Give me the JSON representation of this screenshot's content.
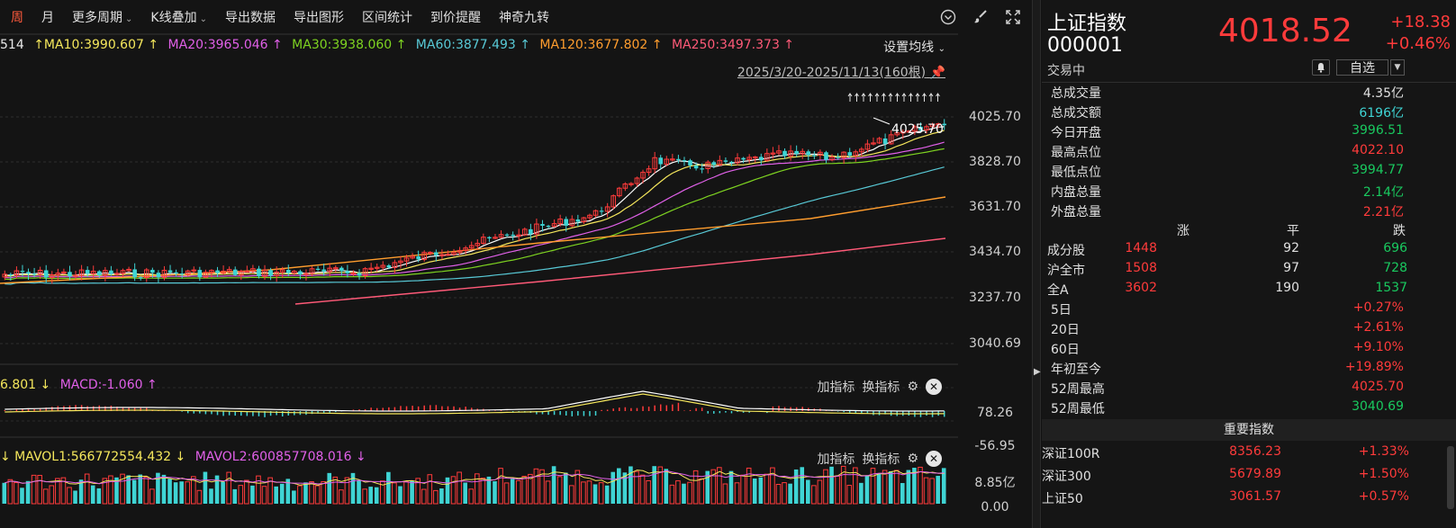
{
  "toolbar": {
    "items": [
      "周",
      "月",
      "更多周期",
      "K线叠加",
      "导出数据",
      "导出图形",
      "区间统计",
      "到价提醒",
      "神奇九转"
    ],
    "active_index": 0,
    "dropdown_flags": [
      false,
      false,
      true,
      true,
      false,
      false,
      false,
      false,
      false
    ]
  },
  "ma_legend": [
    {
      "text": "514",
      "color": "#e8e8e8"
    },
    {
      "text": "↑MA10:3990.607 ↑",
      "color": "#f5e75c"
    },
    {
      "text": "MA20:3965.046 ↑",
      "color": "#e060e8"
    },
    {
      "text": "MA30:3938.060 ↑",
      "color": "#7ed321"
    },
    {
      "text": "MA60:3877.493 ↑",
      "color": "#58c9d6"
    },
    {
      "text": "MA120:3677.802 ↑",
      "color": "#ff9d2e"
    },
    {
      "text": "MA250:3497.373 ↑",
      "color": "#ff5a78"
    }
  ],
  "ma_settings_label": "设置均线",
  "date_range": "2025/3/20-2025/11/13(160根)",
  "max_marker": "4025.70",
  "price_axis": [
    "4025.70",
    "3828.70",
    "3631.70",
    "3434.70",
    "3237.70",
    "3040.69"
  ],
  "macd_legend": [
    {
      "text": "6.801 ↓",
      "color": "#f5e75c"
    },
    {
      "text": "MACD:-1.060 ↑",
      "color": "#e060e8"
    }
  ],
  "macd_axis": [
    "78.26",
    "-56.95"
  ],
  "vol_legend": [
    {
      "text": "↓ MAVOL1:566772554.432 ↓",
      "color": "#f5e75c"
    },
    {
      "text": "MAVOL2:600857708.016 ↓",
      "color": "#e060e8"
    }
  ],
  "vol_axis": [
    "8.85亿",
    "0.00"
  ],
  "sub_tools": {
    "add": "加指标",
    "switch": "换指标"
  },
  "quote": {
    "name": "上证指数",
    "code": "000001",
    "status": "交易中",
    "price": "4018.52",
    "change": "+18.38",
    "change_pct": "+0.46%",
    "watch_label": "自选"
  },
  "stats": [
    {
      "label": "总成交量",
      "value": "4.35亿",
      "color": "#e0e0e0"
    },
    {
      "label": "总成交额",
      "value": "6196亿",
      "color": "#3fd4d4"
    },
    {
      "label": "今日开盘",
      "value": "3996.51",
      "color": "#19c95f"
    },
    {
      "label": "最高点位",
      "value": "4022.10",
      "color": "#ff3b3b"
    },
    {
      "label": "最低点位",
      "value": "3994.77",
      "color": "#19c95f"
    },
    {
      "label": "内盘总量",
      "value": "2.14亿",
      "color": "#19c95f"
    },
    {
      "label": "外盘总量",
      "value": "2.21亿",
      "color": "#ff3b3b"
    }
  ],
  "breadth": {
    "headers": {
      "up": "涨",
      "flat": "平",
      "down": "跌"
    },
    "rows": [
      {
        "label": "成分股",
        "up": "1448",
        "flat": "92",
        "down": "696"
      },
      {
        "label": "沪全市",
        "up": "1508",
        "flat": "97",
        "down": "728"
      },
      {
        "label": "全A",
        "up": "3602",
        "flat": "190",
        "down": "1537"
      }
    ]
  },
  "performance": [
    {
      "label": "5日",
      "value": "+0.27%",
      "color": "#ff3b3b"
    },
    {
      "label": "20日",
      "value": "+2.61%",
      "color": "#ff3b3b"
    },
    {
      "label": "60日",
      "value": "+9.10%",
      "color": "#ff3b3b"
    },
    {
      "label": "年初至今",
      "value": "+19.89%",
      "color": "#ff3b3b"
    },
    {
      "label": "52周最高",
      "value": "4025.70",
      "color": "#ff3b3b"
    },
    {
      "label": "52周最低",
      "value": "3040.69",
      "color": "#19c95f"
    }
  ],
  "key_indices": {
    "title": "重要指数",
    "rows": [
      {
        "name": "深证100R",
        "price": "8356.23",
        "pct": "+1.33%"
      },
      {
        "name": "深证300",
        "price": "5679.89",
        "pct": "+1.50%"
      },
      {
        "name": "上证50",
        "price": "3061.57",
        "pct": "+0.57%"
      }
    ]
  },
  "colors": {
    "up": "#ff3b3b",
    "down": "#19c95f",
    "accent": "#ff5a3c"
  }
}
